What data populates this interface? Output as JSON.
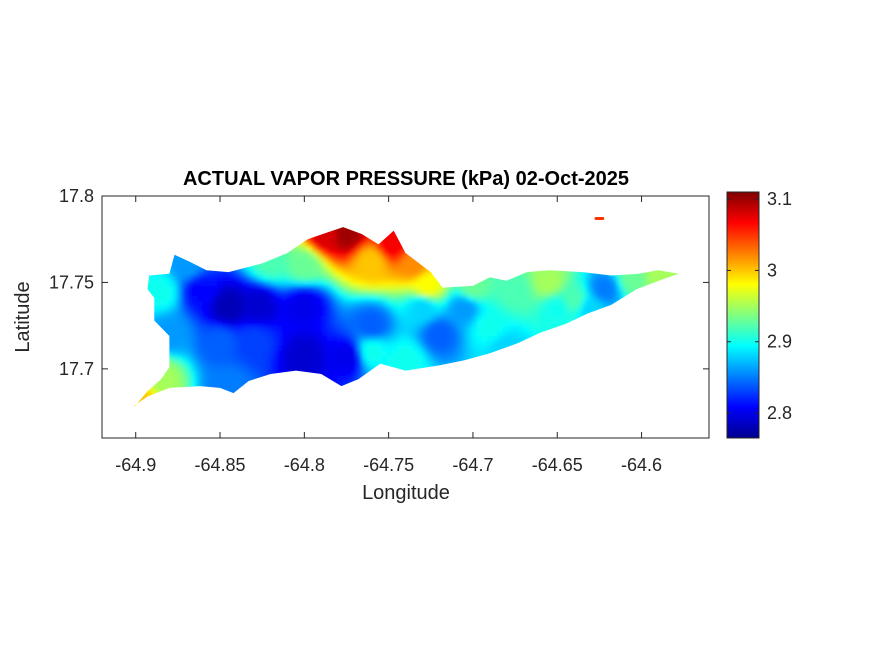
{
  "chart_data": {
    "type": "heatmap",
    "title": "ACTUAL VAPOR PRESSURE (kPa) 02-Oct-2025",
    "xlabel": "Longitude",
    "ylabel": "Latitude",
    "xlim": [
      -64.92,
      -64.56
    ],
    "ylim": [
      17.66,
      17.8
    ],
    "x_ticks": [
      -64.9,
      -64.85,
      -64.8,
      -64.75,
      -64.7,
      -64.65,
      -64.6
    ],
    "x_tick_labels": [
      "-64.9",
      "-64.85",
      "-64.8",
      "-64.75",
      "-64.7",
      "-64.65",
      "-64.6"
    ],
    "y_ticks": [
      17.7,
      17.75,
      17.8
    ],
    "y_tick_labels": [
      "17.7",
      "17.75",
      "17.8"
    ],
    "colorbar": {
      "colormap": "jet",
      "range": [
        2.765,
        3.11
      ],
      "ticks": [
        2.8,
        2.9,
        3,
        3.1
      ],
      "tick_labels": [
        "2.8",
        "2.9",
        "3",
        "3.1"
      ]
    },
    "island_outline": [
      [
        -64.9,
        17.679
      ],
      [
        -64.893,
        17.687
      ],
      [
        -64.885,
        17.694
      ],
      [
        -64.88,
        17.701
      ],
      [
        -64.88,
        17.719
      ],
      [
        -64.889,
        17.728
      ],
      [
        -64.889,
        17.741
      ],
      [
        -64.893,
        17.746
      ],
      [
        -64.892,
        17.754
      ],
      [
        -64.88,
        17.755
      ],
      [
        -64.877,
        17.766
      ],
      [
        -64.868,
        17.762
      ],
      [
        -64.858,
        17.757
      ],
      [
        -64.845,
        17.756
      ],
      [
        -64.825,
        17.761
      ],
      [
        -64.81,
        17.767
      ],
      [
        -64.798,
        17.775
      ],
      [
        -64.786,
        17.779
      ],
      [
        -64.777,
        17.782
      ],
      [
        -64.766,
        17.778
      ],
      [
        -64.756,
        17.772
      ],
      [
        -64.747,
        17.78
      ],
      [
        -64.74,
        17.767
      ],
      [
        -64.725,
        17.756
      ],
      [
        -64.718,
        17.747
      ],
      [
        -64.7,
        17.748
      ],
      [
        -64.69,
        17.753
      ],
      [
        -64.68,
        17.751
      ],
      [
        -64.668,
        17.756
      ],
      [
        -64.655,
        17.757
      ],
      [
        -64.635,
        17.756
      ],
      [
        -64.618,
        17.754
      ],
      [
        -64.602,
        17.755
      ],
      [
        -64.59,
        17.757
      ],
      [
        -64.578,
        17.755
      ],
      [
        -64.587,
        17.752
      ],
      [
        -64.603,
        17.746
      ],
      [
        -64.618,
        17.737
      ],
      [
        -64.632,
        17.732
      ],
      [
        -64.645,
        17.726
      ],
      [
        -64.66,
        17.721
      ],
      [
        -64.673,
        17.715
      ],
      [
        -64.69,
        17.709
      ],
      [
        -64.705,
        17.705
      ],
      [
        -64.72,
        17.702
      ],
      [
        -64.74,
        17.699
      ],
      [
        -64.755,
        17.703
      ],
      [
        -64.768,
        17.694
      ],
      [
        -64.778,
        17.69
      ],
      [
        -64.79,
        17.697
      ],
      [
        -64.805,
        17.699
      ],
      [
        -64.82,
        17.697
      ],
      [
        -64.833,
        17.693
      ],
      [
        -64.842,
        17.686
      ],
      [
        -64.85,
        17.689
      ],
      [
        -64.862,
        17.69
      ],
      [
        -64.88,
        17.689
      ],
      [
        -64.893,
        17.684
      ],
      [
        -64.902,
        17.678
      ]
    ],
    "islet": [
      [
        -64.627,
        17.787
      ],
      [
        -64.623,
        17.787
      ]
    ],
    "stations": [
      {
        "lon": -64.845,
        "lat": 17.736,
        "value": 2.78
      },
      {
        "lon": -64.862,
        "lat": 17.745,
        "value": 2.81
      },
      {
        "lon": -64.827,
        "lat": 17.737,
        "value": 2.79
      },
      {
        "lon": -64.8,
        "lat": 17.737,
        "value": 2.8
      },
      {
        "lon": -64.8,
        "lat": 17.707,
        "value": 2.79
      },
      {
        "lon": -64.774,
        "lat": 17.707,
        "value": 2.8
      },
      {
        "lon": -64.83,
        "lat": 17.715,
        "value": 2.83
      },
      {
        "lon": -64.76,
        "lat": 17.725,
        "value": 2.84
      },
      {
        "lon": -64.88,
        "lat": 17.72,
        "value": 2.86
      },
      {
        "lon": -64.885,
        "lat": 17.745,
        "value": 2.9
      },
      {
        "lon": -64.87,
        "lat": 17.76,
        "value": 2.86
      },
      {
        "lon": -64.885,
        "lat": 17.695,
        "value": 2.95
      },
      {
        "lon": -64.898,
        "lat": 17.682,
        "value": 3.0
      },
      {
        "lon": -64.845,
        "lat": 17.69,
        "value": 2.85
      },
      {
        "lon": -64.82,
        "lat": 17.762,
        "value": 2.92
      },
      {
        "lon": -64.8,
        "lat": 17.76,
        "value": 2.93
      },
      {
        "lon": -64.787,
        "lat": 17.777,
        "value": 3.08
      },
      {
        "lon": -64.775,
        "lat": 17.778,
        "value": 3.1
      },
      {
        "lon": -64.748,
        "lat": 17.772,
        "value": 3.07
      },
      {
        "lon": -64.76,
        "lat": 17.762,
        "value": 3.0
      },
      {
        "lon": -64.735,
        "lat": 17.76,
        "value": 3.02
      },
      {
        "lon": -64.727,
        "lat": 17.748,
        "value": 2.98
      },
      {
        "lon": -64.73,
        "lat": 17.735,
        "value": 2.88
      },
      {
        "lon": -64.72,
        "lat": 17.72,
        "value": 2.84
      },
      {
        "lon": -64.705,
        "lat": 17.735,
        "value": 2.86
      },
      {
        "lon": -64.7,
        "lat": 17.747,
        "value": 2.93
      },
      {
        "lon": -64.69,
        "lat": 17.725,
        "value": 2.9
      },
      {
        "lon": -64.68,
        "lat": 17.712,
        "value": 2.88
      },
      {
        "lon": -64.675,
        "lat": 17.745,
        "value": 2.92
      },
      {
        "lon": -64.655,
        "lat": 17.75,
        "value": 2.95
      },
      {
        "lon": -64.65,
        "lat": 17.735,
        "value": 2.9
      },
      {
        "lon": -64.64,
        "lat": 17.74,
        "value": 2.92
      },
      {
        "lon": -64.622,
        "lat": 17.746,
        "value": 2.85
      },
      {
        "lon": -64.63,
        "lat": 17.735,
        "value": 2.88
      },
      {
        "lon": -64.605,
        "lat": 17.752,
        "value": 2.93
      },
      {
        "lon": -64.59,
        "lat": 17.755,
        "value": 2.95
      },
      {
        "lon": -64.76,
        "lat": 17.71,
        "value": 2.9
      },
      {
        "lon": -64.74,
        "lat": 17.705,
        "value": 2.9
      },
      {
        "lon": -64.85,
        "lat": 17.715,
        "value": 2.84
      },
      {
        "lon": -64.625,
        "lat": 17.787,
        "value": 3.05
      }
    ]
  }
}
